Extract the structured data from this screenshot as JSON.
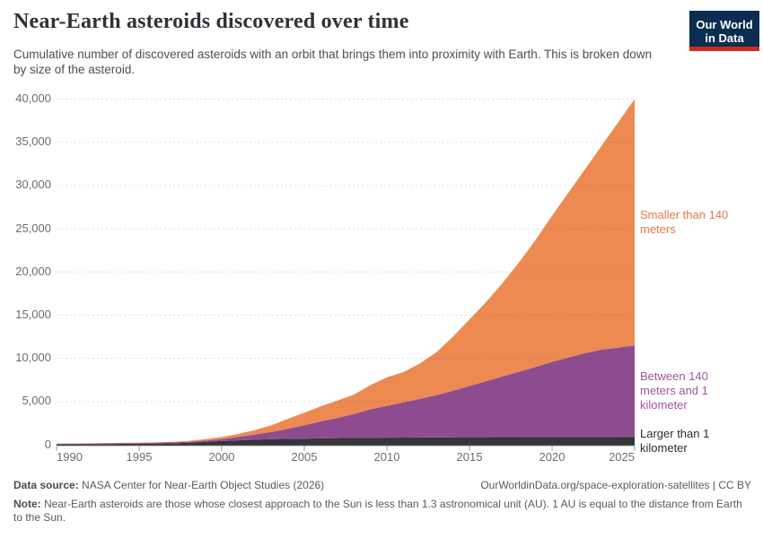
{
  "header": {
    "title": "Near-Earth asteroids discovered over time",
    "subtitle": "Cumulative number of discovered asteroids with an orbit that brings them into proximity with Earth. This is broken down by size of the asteroid.",
    "logo": {
      "line1": "Our World",
      "line2": "in Data",
      "bg_color": "#0B2D51",
      "stripe_color": "#CB2D21",
      "text_color": "#ffffff"
    }
  },
  "footer": {
    "data_source_label": "Data source:",
    "data_source_text": " NASA Center for Near-Earth Object Studies (2026)",
    "link_text": "OurWorldinData.org/space-exploration-satellites | CC BY",
    "note_label": "Note:",
    "note_text": " Near-Earth asteroids are those whose closest approach to the Sun is less than 1.3 astronomical unit (AU). 1 AU is equal to the distance from Earth to the Sun."
  },
  "chart_data": {
    "type": "area",
    "stacked": true,
    "title": "Near-Earth asteroids discovered over time",
    "xlabel": "",
    "ylabel": "",
    "ylim": [
      0,
      40000
    ],
    "grid": true,
    "legend_position": "right-annotations",
    "x_ticks": [
      1990,
      1995,
      2000,
      2005,
      2010,
      2015,
      2020,
      2025
    ],
    "y_ticks": [
      0,
      5000,
      10000,
      15000,
      20000,
      25000,
      30000,
      35000,
      40000
    ],
    "x": [
      1990,
      1991,
      1992,
      1993,
      1994,
      1995,
      1996,
      1997,
      1998,
      1999,
      2000,
      2001,
      2002,
      2003,
      2004,
      2005,
      2006,
      2007,
      2008,
      2009,
      2010,
      2011,
      2012,
      2013,
      2014,
      2015,
      2016,
      2017,
      2018,
      2019,
      2020,
      2021,
      2022,
      2023,
      2024,
      2025
    ],
    "series": [
      {
        "name": "Larger than 1 kilometer",
        "color": "#36343B",
        "label_lines": [
          "Larger than 1",
          "kilometer"
        ],
        "label_color": "#2d2d2d",
        "values": [
          60,
          68,
          77,
          88,
          100,
          118,
          140,
          170,
          230,
          320,
          430,
          510,
          580,
          640,
          680,
          710,
          740,
          765,
          785,
          805,
          820,
          835,
          845,
          855,
          862,
          868,
          875,
          882,
          888,
          893,
          898,
          903,
          908,
          912,
          916,
          920
        ]
      },
      {
        "name": "Between 140 meters and 1 kilometer",
        "color": "#8E4C90",
        "label_lines": [
          "Between 140",
          "meters and 1",
          "kilometer"
        ],
        "label_color": "#A2559C",
        "values": [
          55,
          60,
          65,
          70,
          76,
          82,
          88,
          96,
          115,
          160,
          220,
          390,
          600,
          840,
          1170,
          1540,
          1960,
          2335,
          2765,
          3295,
          3680,
          4065,
          4455,
          4895,
          5388,
          5932,
          6475,
          7018,
          7562,
          8107,
          8702,
          9197,
          9692,
          10088,
          10334,
          10580
        ]
      },
      {
        "name": "Smaller than 140 meters",
        "color": "#ED8A52",
        "label_lines": [
          "Smaller than 140",
          "meters"
        ],
        "label_color": "#E8764C",
        "values": [
          19,
          24,
          29,
          34,
          40,
          50,
          62,
          74,
          105,
          160,
          240,
          350,
          520,
          770,
          1150,
          1450,
          1750,
          2000,
          2250,
          2800,
          3300,
          3500,
          4100,
          4950,
          6250,
          7700,
          9150,
          10800,
          12650,
          14700,
          16900,
          19100,
          21300,
          23600,
          26050,
          28500
        ]
      }
    ],
    "axis_colors": {
      "tick_text": "#6d6d6d",
      "gridline": "rgba(0,0,0,0.13)",
      "baseline": "#4a4a4a",
      "tick_mark": "#9a9a9a"
    }
  }
}
